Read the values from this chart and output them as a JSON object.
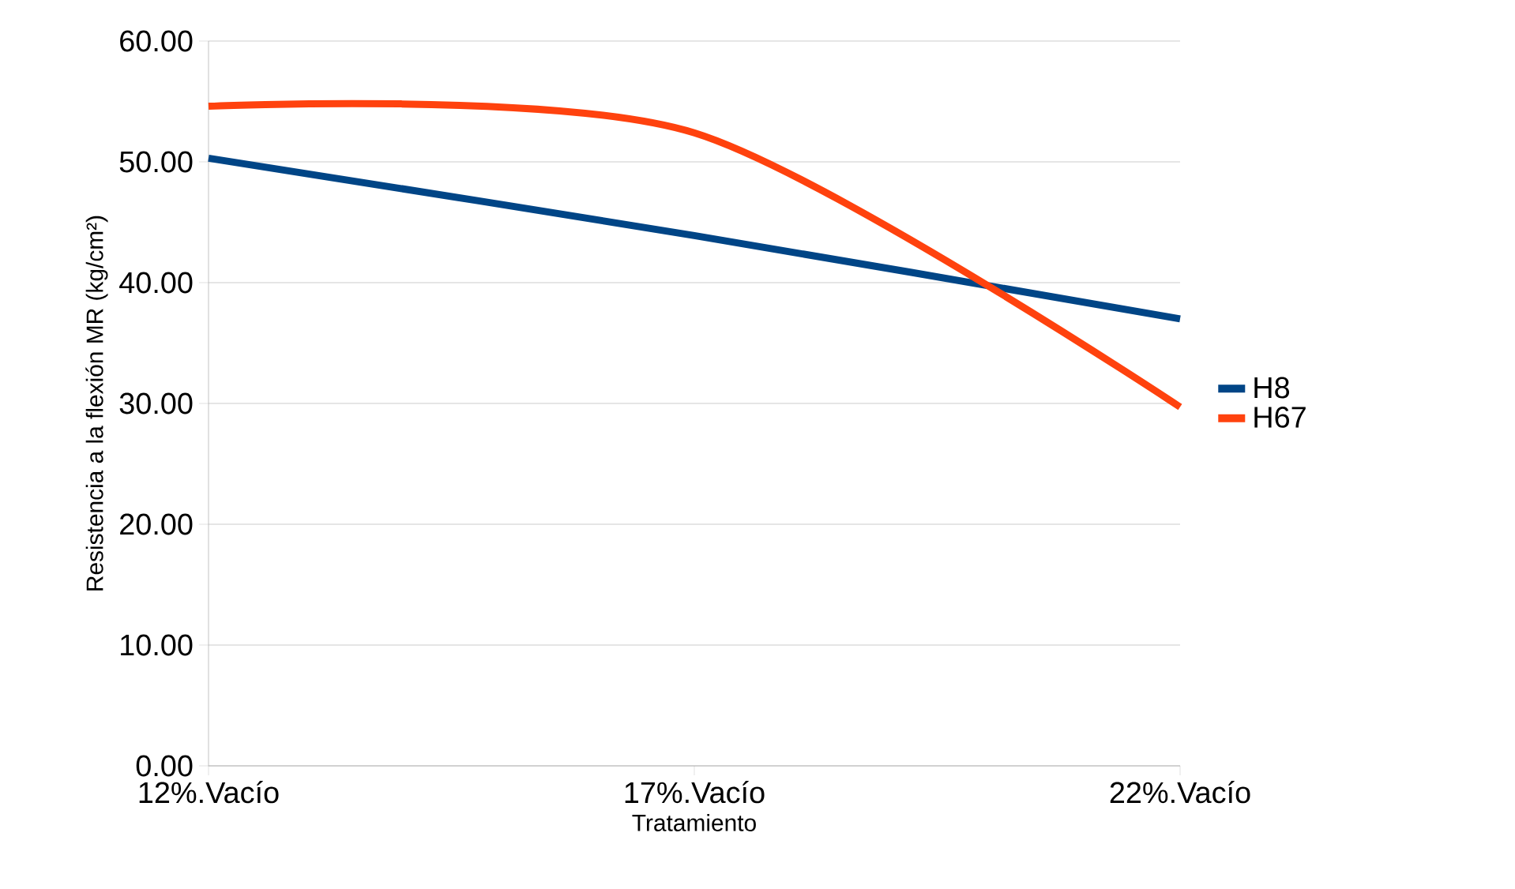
{
  "chart_data": {
    "type": "line",
    "xlabel": "Tratamiento",
    "ylabel": "Resistencia a la flexión MR (kg/cm²)",
    "categories": [
      "12%.Vacío",
      "17%.Vacío",
      "22%.Vacío"
    ],
    "series": [
      {
        "name": "H8",
        "color": "#004586",
        "values": [
          50.3,
          43.9,
          37.0
        ]
      },
      {
        "name": "H67",
        "color": "#ff420e",
        "values": [
          54.6,
          52.4,
          29.7
        ]
      }
    ],
    "ylim": [
      0,
      60
    ],
    "yticks": [
      {
        "value": 0,
        "label": "0.00"
      },
      {
        "value": 10,
        "label": "10.00"
      },
      {
        "value": 20,
        "label": "20.00"
      },
      {
        "value": 30,
        "label": "30.00"
      },
      {
        "value": 40,
        "label": "40.00"
      },
      {
        "value": 50,
        "label": "50.00"
      },
      {
        "value": 60,
        "label": "60.00"
      }
    ],
    "grid": "y",
    "legend": "right",
    "marker": "none",
    "line_style": "solid"
  }
}
